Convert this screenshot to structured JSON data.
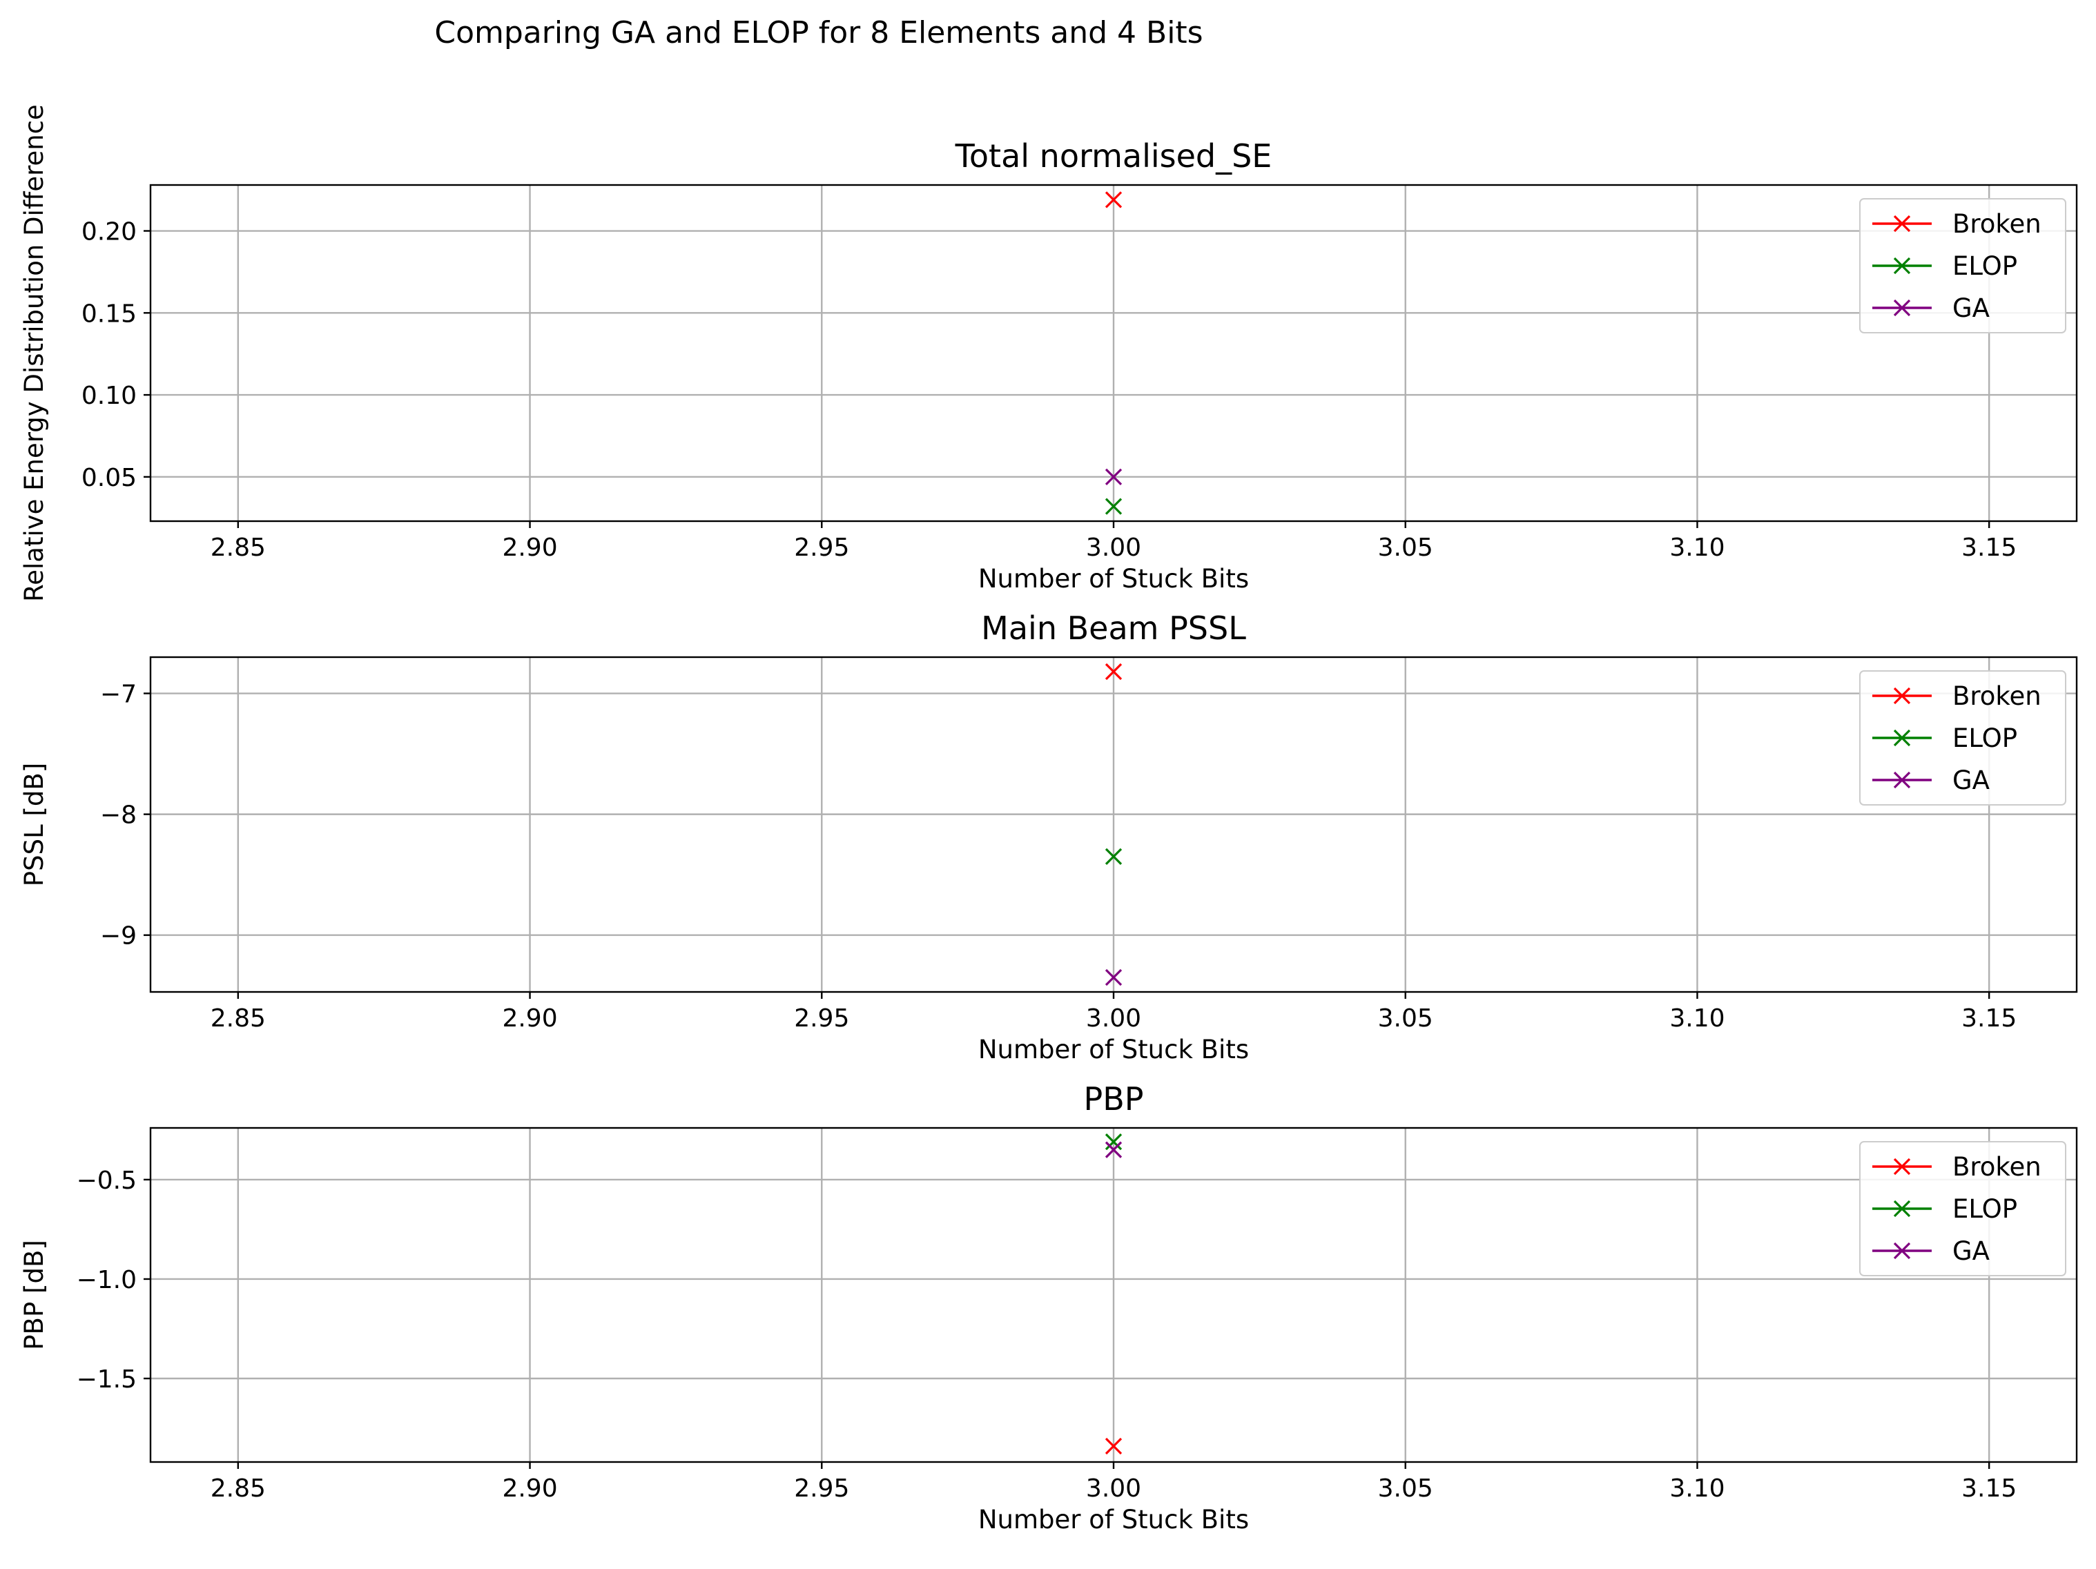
{
  "figure_title": "Comparing GA and ELOP for 8 Elements and 4 Bits",
  "colors": {
    "Broken": "#ff0000",
    "ELOP": "#008000",
    "GA": "#800080",
    "grid": "#b0b0b0",
    "axes": "#000000"
  },
  "chart_data": [
    {
      "type": "scatter",
      "title": "Total normalised_SE",
      "xlabel": "Number of Stuck Bits",
      "ylabel": "Relative Energy Distribution Difference",
      "xlim": [
        2.835,
        3.165
      ],
      "ylim": [
        0.023,
        0.228
      ],
      "xticks": [
        2.85,
        2.9,
        2.95,
        3.0,
        3.05,
        3.1,
        3.15
      ],
      "xtick_labels": [
        "2.85",
        "2.90",
        "2.95",
        "3.00",
        "3.05",
        "3.10",
        "3.15"
      ],
      "yticks": [
        0.05,
        0.1,
        0.15,
        0.2
      ],
      "ytick_labels": [
        "0.05",
        "0.10",
        "0.15",
        "0.20"
      ],
      "grid": true,
      "legend_position": "upper right",
      "series": [
        {
          "name": "Broken",
          "x": [
            3.0
          ],
          "y": [
            0.219
          ]
        },
        {
          "name": "ELOP",
          "x": [
            3.0
          ],
          "y": [
            0.032
          ]
        },
        {
          "name": "GA",
          "x": [
            3.0
          ],
          "y": [
            0.05
          ]
        }
      ]
    },
    {
      "type": "scatter",
      "title": "Main Beam PSSL",
      "xlabel": "Number of Stuck Bits",
      "ylabel": "PSSL [dB]",
      "xlim": [
        2.835,
        3.165
      ],
      "ylim": [
        -9.47,
        -6.7
      ],
      "xticks": [
        2.85,
        2.9,
        2.95,
        3.0,
        3.05,
        3.1,
        3.15
      ],
      "xtick_labels": [
        "2.85",
        "2.90",
        "2.95",
        "3.00",
        "3.05",
        "3.10",
        "3.15"
      ],
      "yticks": [
        -9,
        -8,
        -7
      ],
      "ytick_labels": [
        "−9",
        "−8",
        "−7"
      ],
      "grid": true,
      "legend_position": "upper right",
      "series": [
        {
          "name": "Broken",
          "x": [
            3.0
          ],
          "y": [
            -6.82
          ]
        },
        {
          "name": "ELOP",
          "x": [
            3.0
          ],
          "y": [
            -8.35
          ]
        },
        {
          "name": "GA",
          "x": [
            3.0
          ],
          "y": [
            -9.35
          ]
        }
      ]
    },
    {
      "type": "scatter",
      "title": "PBP",
      "xlabel": "Number of Stuck Bits",
      "ylabel": "PBP [dB]",
      "xlim": [
        2.835,
        3.165
      ],
      "ylim": [
        -1.92,
        -0.24
      ],
      "xticks": [
        2.85,
        2.9,
        2.95,
        3.0,
        3.05,
        3.1,
        3.15
      ],
      "xtick_labels": [
        "2.85",
        "2.90",
        "2.95",
        "3.00",
        "3.05",
        "3.10",
        "3.15"
      ],
      "yticks": [
        -1.5,
        -1.0,
        -0.5
      ],
      "ytick_labels": [
        "−1.5",
        "−1.0",
        "−0.5"
      ],
      "grid": true,
      "legend_position": "upper right",
      "series": [
        {
          "name": "Broken",
          "x": [
            3.0
          ],
          "y": [
            -1.84
          ]
        },
        {
          "name": "ELOP",
          "x": [
            3.0
          ],
          "y": [
            -0.31
          ]
        },
        {
          "name": "GA",
          "x": [
            3.0
          ],
          "y": [
            -0.35
          ]
        }
      ]
    }
  ]
}
